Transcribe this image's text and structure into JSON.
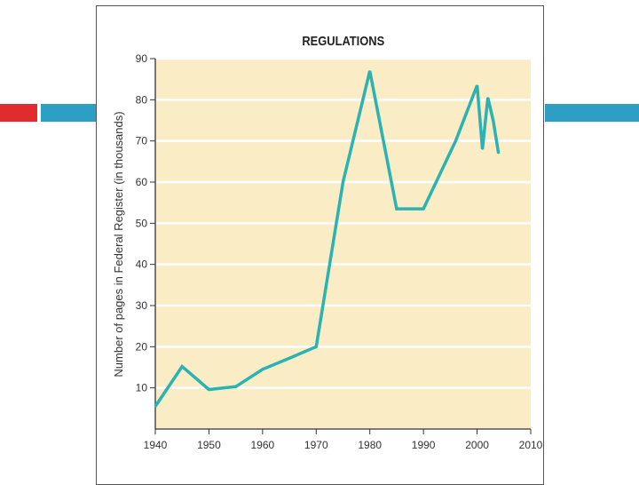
{
  "slide": {
    "accent_red": "#e02b2f",
    "accent_blue": "#2e9fc4"
  },
  "chart_data": {
    "type": "line",
    "title": "REGULATIONS",
    "xlabel": "",
    "ylabel": "Number of pages in Federal Register (in thousands)",
    "xlim": [
      1940,
      2010
    ],
    "ylim": [
      0,
      90
    ],
    "xticks": [
      1940,
      1950,
      1960,
      1970,
      1980,
      1990,
      2000,
      2010
    ],
    "yticks": [
      10,
      20,
      30,
      40,
      50,
      60,
      70,
      80,
      90
    ],
    "grid": true,
    "legend": "none",
    "plot_background": "#faecc4",
    "line_color": "#2bb3b3",
    "series": [
      {
        "x": [
          1940,
          1945,
          1950,
          1955,
          1960,
          1965,
          1970,
          1975,
          1980,
          1985,
          1990,
          1996,
          2000,
          2001,
          2002,
          2003,
          2004
        ],
        "values": [
          5.5,
          15.2,
          9.6,
          10.3,
          14.5,
          17.2,
          20,
          60,
          87,
          53.5,
          53.5,
          70,
          83.5,
          68,
          80.5,
          75,
          67
        ]
      }
    ]
  }
}
